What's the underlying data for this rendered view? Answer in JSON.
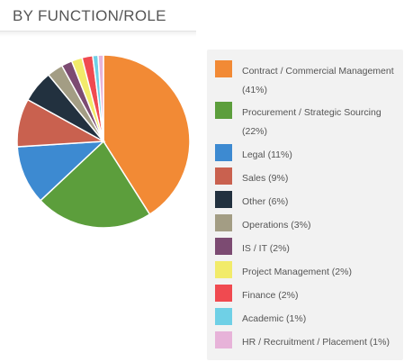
{
  "header": {
    "title": "BY FUNCTION/ROLE"
  },
  "chart_data": {
    "type": "pie",
    "title": "BY FUNCTION/ROLE",
    "legend_position": "right",
    "slices": [
      {
        "label": "Contract / Commercial Management (41%)",
        "value": 41,
        "color": "#f28a35"
      },
      {
        "label": "Procurement / Strategic Sourcing (22%)",
        "value": 22,
        "color": "#5c9e3c"
      },
      {
        "label": "Legal (11%)",
        "value": 11,
        "color": "#3d8ad1"
      },
      {
        "label": "Sales (9%)",
        "value": 9,
        "color": "#c9614f"
      },
      {
        "label": "Other (6%)",
        "value": 6,
        "color": "#22313f"
      },
      {
        "label": "Operations (3%)",
        "value": 3,
        "color": "#a39d84"
      },
      {
        "label": "IS / IT (2%)",
        "value": 2,
        "color": "#7c4b72"
      },
      {
        "label": "Project Management (2%)",
        "value": 2,
        "color": "#f2eb6a"
      },
      {
        "label": "Finance (2%)",
        "value": 2,
        "color": "#f04a50"
      },
      {
        "label": "Academic (1%)",
        "value": 1,
        "color": "#6fd0e6"
      },
      {
        "label": "HR / Recruitment / Placement (1%)",
        "value": 1,
        "color": "#e7b3d9"
      }
    ]
  }
}
